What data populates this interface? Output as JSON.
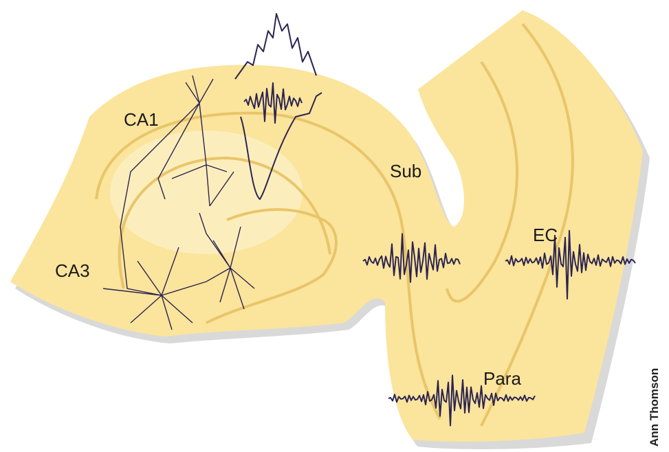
{
  "regions": [
    {
      "label": "CA1"
    },
    {
      "label": "CA3"
    },
    {
      "label": "Sub"
    },
    {
      "label": "EC"
    },
    {
      "label": "Para"
    }
  ],
  "credit": "Ann Thomson"
}
